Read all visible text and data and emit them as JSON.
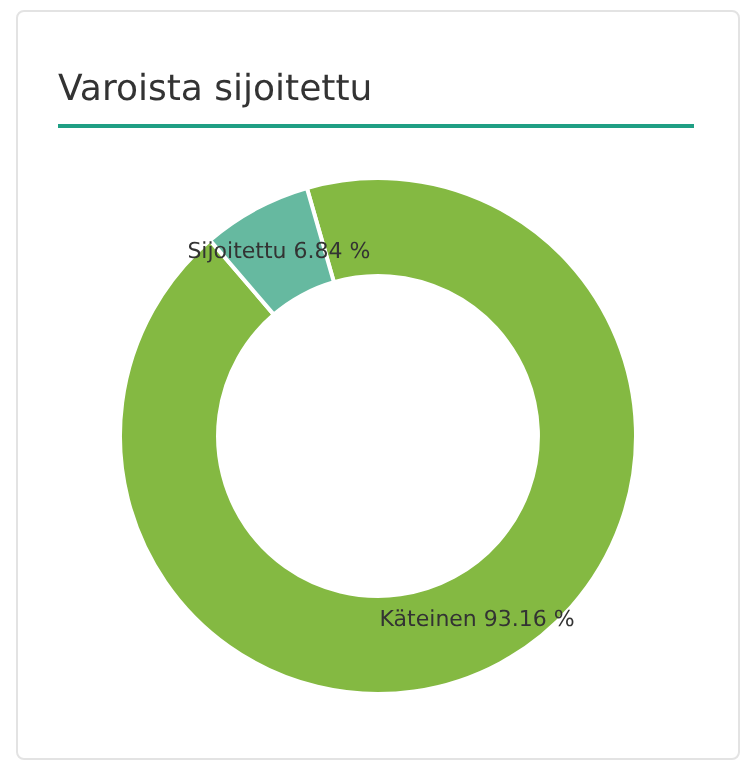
{
  "chart_data": {
    "type": "donut",
    "title": "Varoista sijoitettu",
    "categories": [
      "Käteinen",
      "Sijoitettu"
    ],
    "values": [
      93.16,
      6.84
    ],
    "colors": [
      "#84b942",
      "#66b9a0"
    ],
    "value_labels": [
      "93.16 %",
      "6.84 %"
    ],
    "legend": false
  }
}
